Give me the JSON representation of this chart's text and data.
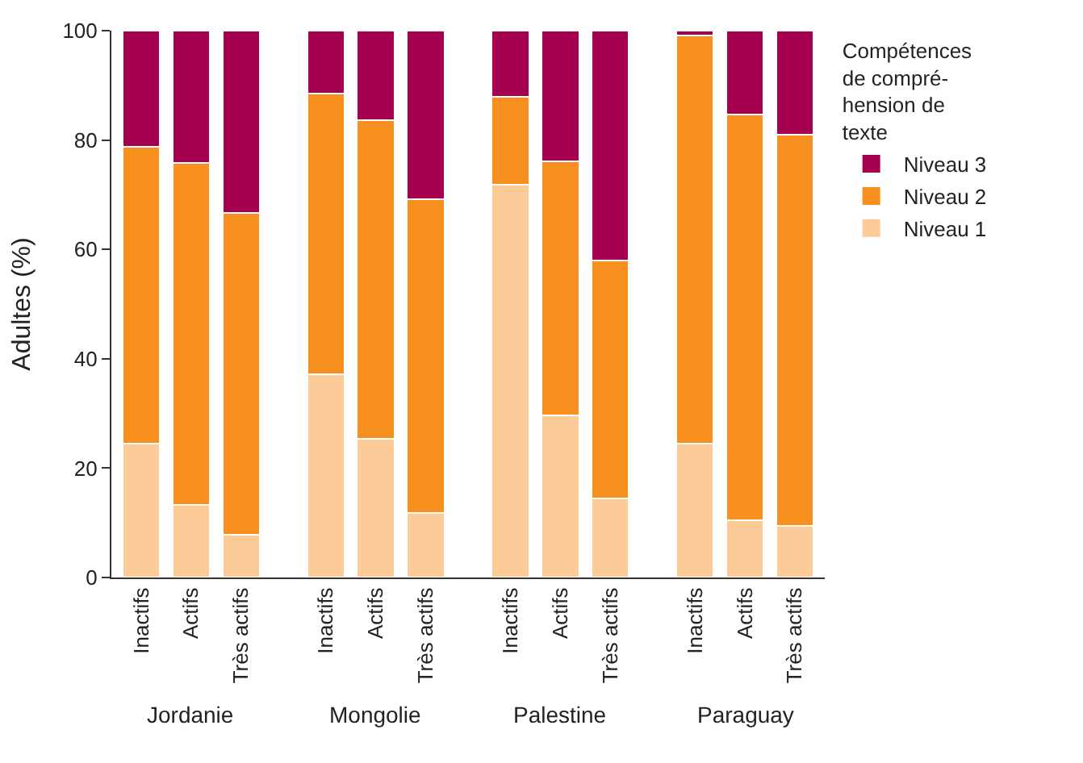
{
  "chart_data": {
    "type": "bar",
    "stacked": true,
    "ylabel": "Adultes (%)",
    "legend_title": "Compétences\nde compré-\nhension de\ntexte",
    "legend": "top right",
    "categories": [
      "Inactifs",
      "Actifs",
      "Très actifs",
      "Inactifs",
      "Actifs",
      "Très actifs",
      "Inactifs",
      "Actifs",
      "Très actifs",
      "Inactifs",
      "Actifs",
      "Très actifs"
    ],
    "annotations": [
      "Jordanie",
      "Mongolie",
      "Palestine",
      "Paraguay"
    ],
    "ylim": [
      0,
      100
    ],
    "yticks": [
      0,
      20,
      40,
      60,
      80,
      100
    ],
    "series": [
      {
        "name": "Niveau 1",
        "color": "#fccb98",
        "values": [
          24.5,
          13.3,
          7.8,
          37.2,
          25.4,
          11.8,
          71.8,
          29.7,
          14.4,
          24.5,
          10.4,
          9.5
        ]
      },
      {
        "name": "Niveau 2",
        "color": "#f7901e",
        "values": [
          54.2,
          62.5,
          58.8,
          51.3,
          58.2,
          57.4,
          16.1,
          46.4,
          43.5,
          74.6,
          74.3,
          71.5
        ]
      },
      {
        "name": "Niveau 3",
        "color": "#a50050",
        "values": [
          21.3,
          24.2,
          33.4,
          11.5,
          16.4,
          30.8,
          12.1,
          23.9,
          42.1,
          0.9,
          15.3,
          19.0
        ]
      }
    ]
  }
}
